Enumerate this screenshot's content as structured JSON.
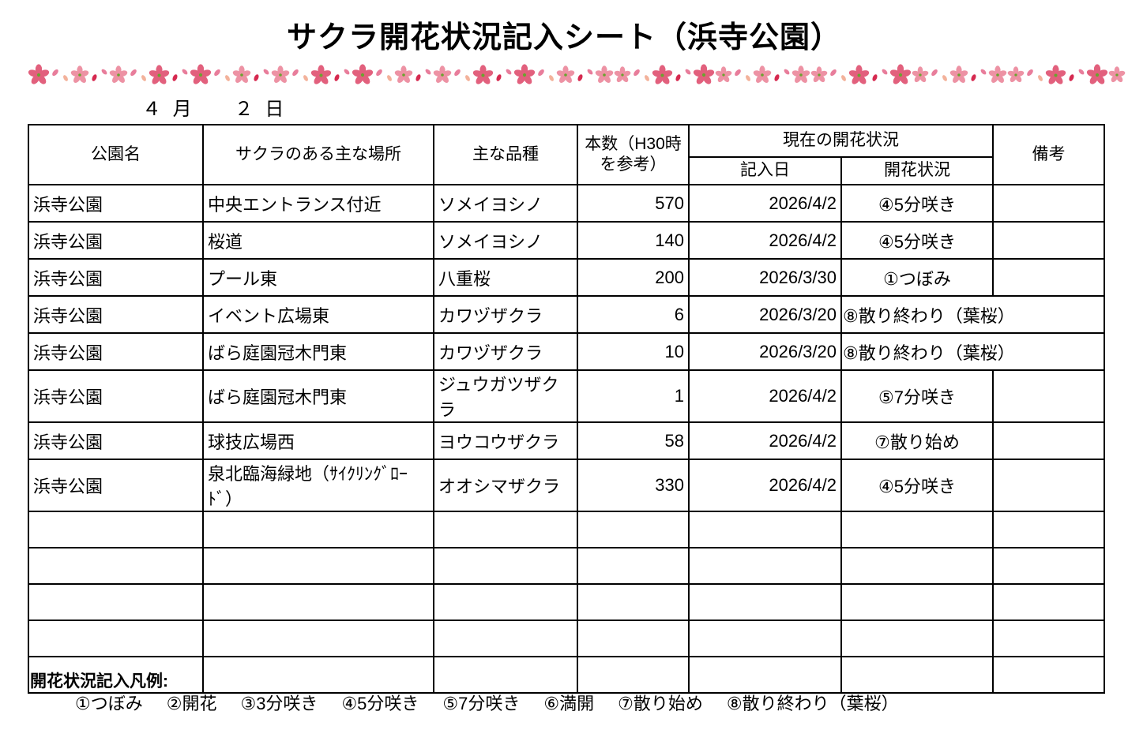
{
  "title": "サクラ開花状況記入シート（浜寺公園）",
  "date_line": {
    "month": "４ 月",
    "day": "２ 日"
  },
  "table": {
    "headers": {
      "park": "公園名",
      "location": "サクラのある主な場所",
      "variety": "主な品種",
      "count": "本数（H30時を参考）",
      "current_status": "現在の開花状況",
      "entry_date": "記入日",
      "status": "開花状況",
      "remarks": "備考"
    },
    "rows": [
      {
        "park": "浜寺公園",
        "location": "中央エントランス付近",
        "variety": "ソメイヨシノ",
        "count": "570",
        "date": "2026/4/2",
        "status": "④5分咲き",
        "remarks": "",
        "overflow": false
      },
      {
        "park": "浜寺公園",
        "location": "桜道",
        "variety": "ソメイヨシノ",
        "count": "140",
        "date": "2026/4/2",
        "status": "④5分咲き",
        "remarks": "",
        "overflow": false
      },
      {
        "park": "浜寺公園",
        "location": "プール東",
        "variety": "八重桜",
        "count": "200",
        "date": "2026/3/30",
        "status": "①つぼみ",
        "remarks": "",
        "overflow": false
      },
      {
        "park": "浜寺公園",
        "location": "イベント広場東",
        "variety": "カワヅザクラ",
        "count": "6",
        "date": "2026/3/20",
        "status": "⑧散り終わり（葉桜）",
        "remarks": "",
        "overflow": true
      },
      {
        "park": "浜寺公園",
        "location": "ばら庭園冠木門東",
        "variety": "カワヅザクラ",
        "count": "10",
        "date": "2026/3/20",
        "status": "⑧散り終わり（葉桜）",
        "remarks": "",
        "overflow": true
      },
      {
        "park": "浜寺公園",
        "location": "ばら庭園冠木門東",
        "variety": "ジュウガツザクラ",
        "count": "1",
        "date": "2026/4/2",
        "status": "⑤7分咲き",
        "remarks": "",
        "overflow": false
      },
      {
        "park": "浜寺公園",
        "location": "球技広場西",
        "variety": "ヨウコウザクラ",
        "count": "58",
        "date": "2026/4/2",
        "status": "⑦散り始め",
        "remarks": "",
        "overflow": false
      },
      {
        "park": "浜寺公園",
        "location": "泉北臨海緑地（ｻｲｸﾘﾝｸﾞﾛｰﾄﾞ）",
        "variety": "オオシマザクラ",
        "count": "330",
        "date": "2026/4/2",
        "status": "④5分咲き",
        "remarks": "",
        "overflow": false
      }
    ],
    "empty_row_count": 5
  },
  "legend": {
    "title": "開花状況記入凡例:",
    "items": [
      "①つぼみ",
      "②開花",
      "③3分咲き",
      "④5分咲き",
      "⑤7分咲き",
      "⑥満開",
      "⑦散り始め",
      "⑧散り終わり（葉桜）"
    ]
  },
  "decor": {
    "flower_pink": "#e2607d",
    "flower_light_pink": "#ed92a4",
    "petal_pink": "#e87d9b",
    "petal_peach": "#f3b29b",
    "petal_red": "#d62a50",
    "flower_center_green": "#69a42f"
  }
}
